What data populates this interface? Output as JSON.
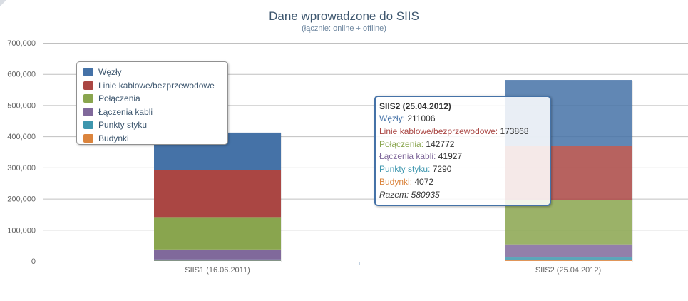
{
  "chart_data": {
    "type": "bar",
    "stacked": true,
    "title": "Dane wprowadzone do SIIS",
    "subtitle": "(łącznie: online + offline)",
    "categories": [
      "SIIS1 (16.06.2011)",
      "SIIS2 (25.04.2012)"
    ],
    "ylim": [
      0,
      700000
    ],
    "yticks": [
      "0",
      "100,000",
      "200,000",
      "300,000",
      "400,000",
      "500,000",
      "600,000",
      "700,000"
    ],
    "ytick_values": [
      0,
      100000,
      200000,
      300000,
      400000,
      500000,
      600000,
      700000
    ],
    "grid": true,
    "legend_placement": "top-left",
    "series": [
      {
        "name": "Węzły",
        "color": "#4572A7",
        "values": [
          121000,
          211006
        ]
      },
      {
        "name": "Linie kablowe/bezprzewodowe",
        "color": "#AA4643",
        "values": [
          150000,
          173868
        ]
      },
      {
        "name": "Połączenia",
        "color": "#89A54E",
        "values": [
          104000,
          142772
        ]
      },
      {
        "name": "Łączenia kabli",
        "color": "#80699B",
        "values": [
          32000,
          41927
        ]
      },
      {
        "name": "Punkty styku",
        "color": "#3D96AE",
        "values": [
          4000,
          7290
        ]
      },
      {
        "name": "Budynki",
        "color": "#DB843D",
        "values": [
          1000,
          4072
        ]
      }
    ]
  },
  "tooltip": {
    "header": "SIIS2 (25.04.2012)",
    "rows": [
      {
        "label": "Węzły:",
        "value": "211006",
        "color": "#4572A7"
      },
      {
        "label": "Linie kablowe/bezprzewodowe:",
        "value": "173868",
        "color": "#AA4643"
      },
      {
        "label": "Połączenia:",
        "value": "142772",
        "color": "#89A54E"
      },
      {
        "label": "Łączenia kabli:",
        "value": "41927",
        "color": "#80699B"
      },
      {
        "label": "Punkty styku:",
        "value": "7290",
        "color": "#3D96AE"
      },
      {
        "label": "Budynki:",
        "value": "4072",
        "color": "#DB843D"
      }
    ],
    "total": "Razem: 580935"
  }
}
